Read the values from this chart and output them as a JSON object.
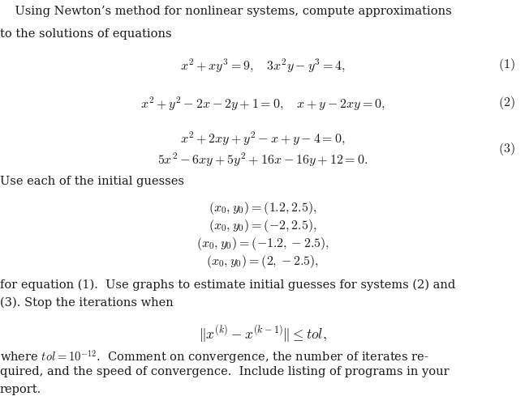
{
  "line1": "    Using Newton’s method for nonlinear systems, compute approximations",
  "line2": "to the solutions of equations",
  "eq1": "$x^2 + xy^3 = 9, \\quad 3x^2y - y^3 = 4,$",
  "eq1_label": "$(1)$",
  "eq2": "$x^2 + y^2 - 2x - 2y + 1 = 0, \\quad x + y - 2xy = 0,$",
  "eq2_label": "$(2)$",
  "eq3a": "$x^2 + 2xy + y^2 - x + y - 4 = 0,$",
  "eq3b": "$5x^2 - 6xy + 5y^2 + 16x - 16y + 12 = 0.$",
  "eq3_label": "$(3)$",
  "guesses_intro": "Use each of the initial guesses",
  "guess1": "$(x_0, y_0) = (1.2, 2.5),$",
  "guess2": "$(x_0, y_0) = (-2, 2.5),$",
  "guess3": "$(x_0, y_0) = (-1.2, -2.5),$",
  "guess4": "$(x_0, y_0) = (2, -2.5),$",
  "para2a": "for equation (1).  Use graphs to estimate initial guesses for systems (2) and",
  "para2b": "(3). Stop the iterations when",
  "norm_eq": "$\\|x^{(k)} - x^{(k-1)}\\| \\leq tol,$",
  "para3a": "where $tol = 10^{-12}$.  Comment on convergence, the number of iterates re-",
  "para3b": "quired, and the speed of convergence.  Include listing of programs in your",
  "para3c": "report.",
  "bg_color": "#ffffff",
  "text_color": "#1a1a1a",
  "font_size_body": 10.5,
  "font_size_eq": 11.5
}
